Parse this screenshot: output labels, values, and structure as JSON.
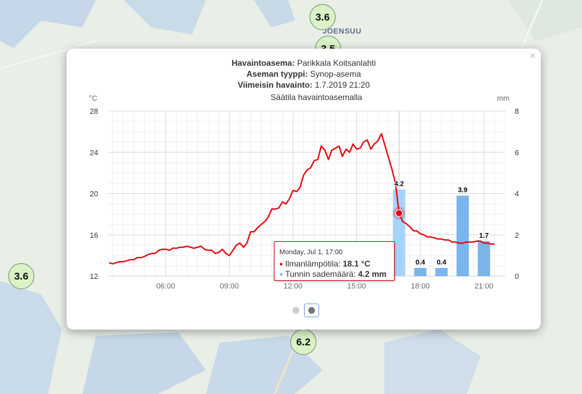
{
  "map": {
    "city_label": "JOENSUU",
    "markers": [
      "3.6",
      "3.5",
      "3.6",
      "6.2"
    ]
  },
  "popup": {
    "close_symbol": "×",
    "station_label": "Havaintoasema:",
    "station_value": "Parikkala Koitsanlahti",
    "type_label": "Aseman tyyppi:",
    "type_value": "Synop-asema",
    "latest_label": "Viimeisin havainto:",
    "latest_value": "1.7.2019 21:20",
    "pager_pages": 2,
    "pager_active": 2
  },
  "tooltip": {
    "header": "Monday, Jul 1, 17:00",
    "temp_label": "Ilmanlämpötila:",
    "temp_value": "18.1 °C",
    "rain_label": "Tunnin sademäärä:",
    "rain_value": "4.2 mm",
    "temp_color": "#e8000b",
    "rain_color": "#7cb5ec"
  },
  "chart_data": {
    "type": "line",
    "title": "Säätila havaintoasemalla",
    "y_left_unit": "°C",
    "y_right_unit": "mm",
    "y_left_ticks": [
      "28",
      "24",
      "20",
      "16",
      "12"
    ],
    "y_right_ticks": [
      "8",
      "6",
      "4",
      "2",
      "0"
    ],
    "ylim_left": [
      12,
      28
    ],
    "ylim_right": [
      0,
      8
    ],
    "xlim": [
      3.3,
      22.0
    ],
    "x_ticks": [
      {
        "x": 6,
        "label": "06:00"
      },
      {
        "x": 9,
        "label": "09:00"
      },
      {
        "x": 12,
        "label": "12:00"
      },
      {
        "x": 15,
        "label": "15:00"
      },
      {
        "x": 18,
        "label": "18:00"
      },
      {
        "x": 21,
        "label": "21:00"
      }
    ],
    "grid": true,
    "crosshair_x": 17.0,
    "series": [
      {
        "name": "Ilmanlämpötila",
        "type": "line",
        "axis": "left",
        "color": "#e8000b",
        "x": [
          3.33,
          3.5,
          3.67,
          3.83,
          4.0,
          4.17,
          4.33,
          4.5,
          4.67,
          4.83,
          5.0,
          5.17,
          5.33,
          5.5,
          5.67,
          5.83,
          6.0,
          6.17,
          6.33,
          6.5,
          6.67,
          6.83,
          7.0,
          7.17,
          7.33,
          7.5,
          7.67,
          7.83,
          8.0,
          8.17,
          8.33,
          8.5,
          8.67,
          8.83,
          9.0,
          9.17,
          9.33,
          9.5,
          9.67,
          9.83,
          10.0,
          10.17,
          10.33,
          10.5,
          10.67,
          10.83,
          11.0,
          11.17,
          11.33,
          11.5,
          11.67,
          11.83,
          12.0,
          12.17,
          12.33,
          12.5,
          12.67,
          12.83,
          13.0,
          13.17,
          13.33,
          13.5,
          13.67,
          13.83,
          14.0,
          14.17,
          14.33,
          14.5,
          14.67,
          14.83,
          15.0,
          15.17,
          15.33,
          15.5,
          15.67,
          15.83,
          16.0,
          16.17,
          16.33,
          16.5,
          16.67,
          16.83,
          17.0,
          17.17,
          17.33,
          17.5,
          17.67,
          17.83,
          18.0,
          18.17,
          18.33,
          18.5,
          18.67,
          18.83,
          19.0,
          19.17,
          19.33,
          19.5,
          19.67,
          19.83,
          20.0,
          20.17,
          20.33,
          20.5,
          20.67,
          20.83,
          21.0,
          21.17,
          21.33,
          21.5
        ],
        "y": [
          13.3,
          13.2,
          13.3,
          13.4,
          13.4,
          13.5,
          13.6,
          13.6,
          13.8,
          13.8,
          13.9,
          14.1,
          14.2,
          14.2,
          14.5,
          14.6,
          14.6,
          14.5,
          14.7,
          14.7,
          14.8,
          14.8,
          14.9,
          14.8,
          14.7,
          14.8,
          14.9,
          14.6,
          14.5,
          14.5,
          14.2,
          14.3,
          14.6,
          14.2,
          14.0,
          14.5,
          15.0,
          15.2,
          14.8,
          15.2,
          16.3,
          16.3,
          16.7,
          17.0,
          17.3,
          17.7,
          18.5,
          18.5,
          18.6,
          19.2,
          19.0,
          19.5,
          20.3,
          20.2,
          20.6,
          21.8,
          22.3,
          22.5,
          23.2,
          23.3,
          24.6,
          24.2,
          23.3,
          24.2,
          24.4,
          24.6,
          23.6,
          24.3,
          24.0,
          24.8,
          24.3,
          24.4,
          25.0,
          25.2,
          24.3,
          24.8,
          25.1,
          25.8,
          24.7,
          23.5,
          22.3,
          21.0,
          18.1,
          17.3,
          17.1,
          16.8,
          16.4,
          16.4,
          16.1,
          16.0,
          15.8,
          15.8,
          15.7,
          15.6,
          15.6,
          15.5,
          15.5,
          15.3,
          15.3,
          15.2,
          15.2,
          15.3,
          15.3,
          15.3,
          15.4,
          15.4,
          15.2,
          15.2,
          15.1,
          15.1
        ]
      },
      {
        "name": "Tunnin sademäärä",
        "type": "bar",
        "axis": "right",
        "color": "#7cb5ec",
        "highlight_color": "#a6d3fb",
        "x": [
          17,
          18,
          19,
          20,
          21
        ],
        "values": [
          4.2,
          0.4,
          0.4,
          3.9,
          1.7
        ],
        "highlight_index": 0
      }
    ]
  }
}
